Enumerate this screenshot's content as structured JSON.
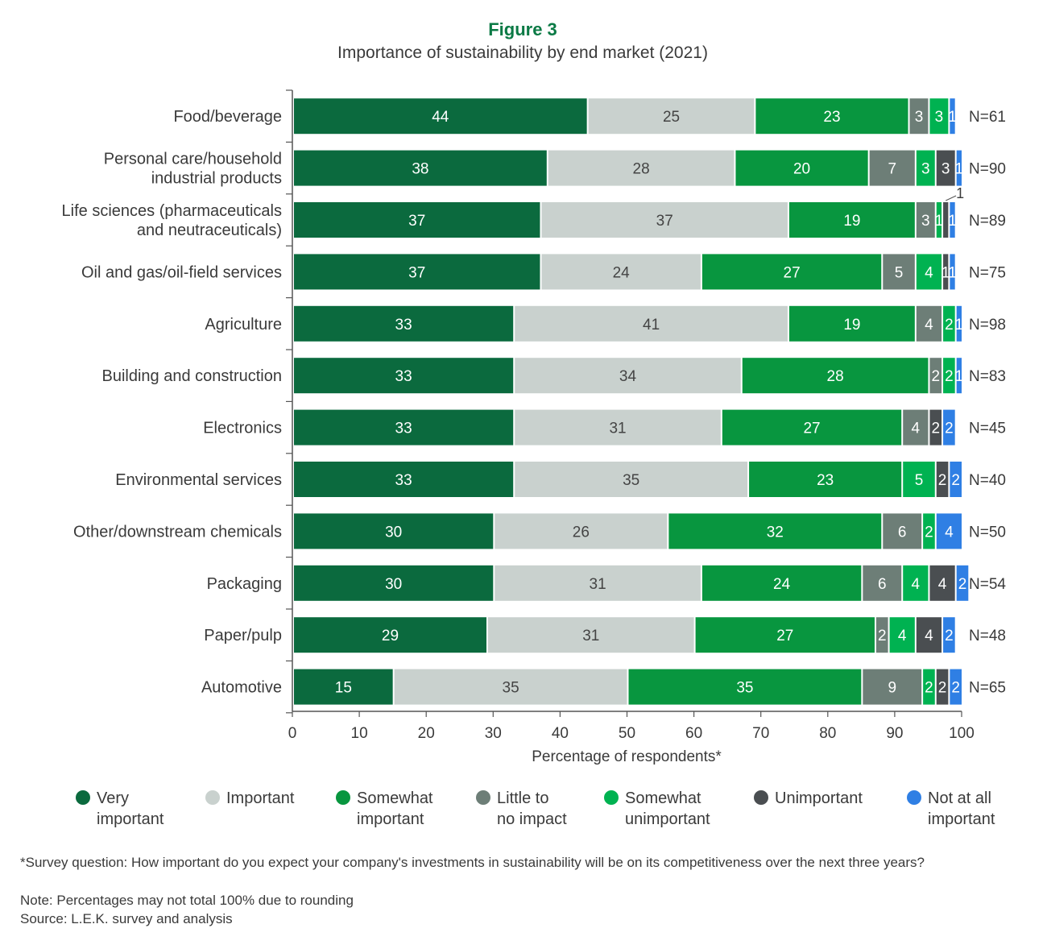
{
  "chart_data": {
    "type": "bar",
    "orientation": "horizontal",
    "stacked": true,
    "figure_label": "Figure 3",
    "title": "Importance of sustainability by end market (2021)",
    "xlabel": "Percentage of respondents*",
    "xlim": [
      0,
      100
    ],
    "xticks": [
      0,
      10,
      20,
      30,
      40,
      50,
      60,
      70,
      80,
      90,
      100
    ],
    "grid": false,
    "legend_position": "bottom",
    "categories": [
      [
        "Food/beverage"
      ],
      [
        "Personal care/household",
        "industrial products"
      ],
      [
        "Life sciences (pharmaceuticals",
        "and neutraceuticals)"
      ],
      [
        "Oil and gas/oil-field services"
      ],
      [
        "Agriculture"
      ],
      [
        "Building and construction"
      ],
      [
        "Electronics"
      ],
      [
        "Environmental services"
      ],
      [
        "Other/downstream chemicals"
      ],
      [
        "Packaging"
      ],
      [
        "Paper/pulp"
      ],
      [
        "Automotive"
      ]
    ],
    "sample_sizes": [
      "N=61",
      "N=90",
      "N=89",
      "N=75",
      "N=98",
      "N=83",
      "N=45",
      "N=40",
      "N=50",
      "N=54",
      "N=48",
      "N=65"
    ],
    "series": [
      {
        "name": "Very important",
        "legend": [
          "Very",
          "important"
        ],
        "color": "#0b6a3e",
        "values": [
          44,
          38,
          37,
          37,
          33,
          33,
          33,
          33,
          30,
          30,
          29,
          15
        ]
      },
      {
        "name": "Important",
        "legend": [
          "Important"
        ],
        "color": "#c9d1ce",
        "values": [
          25,
          28,
          37,
          24,
          41,
          34,
          31,
          35,
          26,
          31,
          31,
          35
        ]
      },
      {
        "name": "Somewhat important",
        "legend": [
          "Somewhat",
          "important"
        ],
        "color": "#08963f",
        "values": [
          23,
          20,
          19,
          27,
          19,
          28,
          27,
          23,
          32,
          24,
          27,
          35
        ]
      },
      {
        "name": "Little to no impact",
        "legend": [
          "Little to",
          "no impact"
        ],
        "color": "#6d7e77",
        "values": [
          3,
          7,
          3,
          5,
          4,
          2,
          4,
          0,
          6,
          6,
          2,
          9
        ]
      },
      {
        "name": "Somewhat unimportant",
        "legend": [
          "Somewhat",
          "unimportant"
        ],
        "color": "#00b251",
        "values": [
          3,
          3,
          1,
          4,
          2,
          2,
          0,
          5,
          2,
          4,
          4,
          2
        ]
      },
      {
        "name": "Unimportant",
        "legend": [
          "Unimportant"
        ],
        "color": "#4a4e51",
        "values": [
          0,
          3,
          1,
          1,
          0,
          0,
          2,
          2,
          0,
          4,
          4,
          2
        ]
      },
      {
        "name": "Not at all important",
        "legend": [
          "Not at all",
          "important"
        ],
        "color": "#2f7fe4",
        "values": [
          1,
          1,
          1,
          1,
          1,
          1,
          2,
          2,
          4,
          2,
          2,
          2
        ]
      }
    ]
  },
  "footnotes": [
    "*Survey question: How important do you expect your company's investments in sustainability will be on its competitiveness over the next three years?",
    "Note: Percentages may not total 100% due to rounding",
    "Source: L.E.K. survey and analysis"
  ],
  "colors": {
    "figure_label": "#0b7a45",
    "text": "#3a3a3a"
  }
}
